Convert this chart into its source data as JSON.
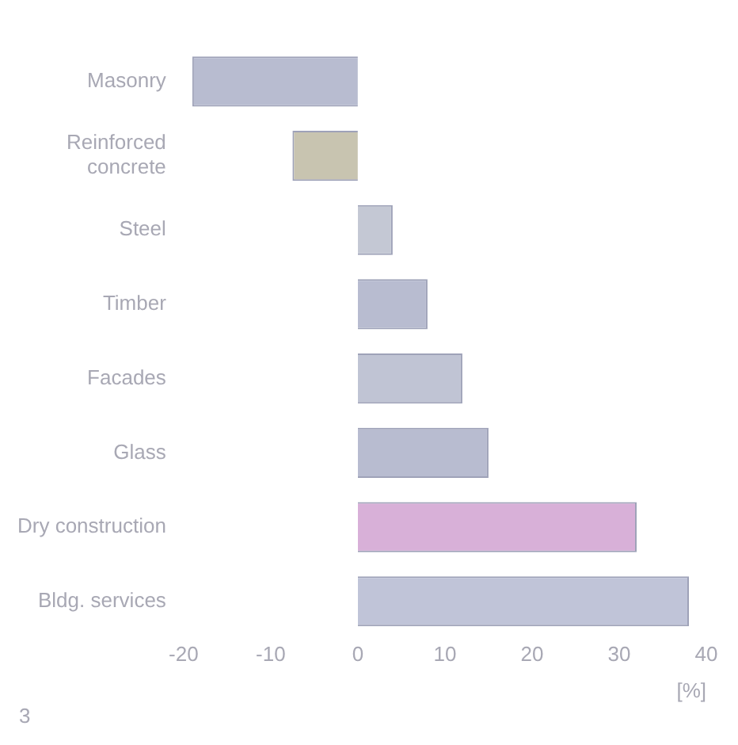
{
  "chart_data": {
    "type": "bar",
    "orientation": "horizontal",
    "xlabel": "[%]",
    "categories": [
      "Masonry",
      "Reinforced\nconcrete",
      "Steel",
      "Timber",
      "Facades",
      "Glass",
      "Dry construction",
      "Bldg. services"
    ],
    "values": [
      -19,
      -7.5,
      4,
      8,
      12,
      15,
      32,
      38
    ],
    "colors": [
      "#b8bcd0",
      "#c8c4b0",
      "#c4c8d4",
      "#b8bcd0",
      "#c0c4d4",
      "#b8bcd0",
      "#d8b0d8",
      "#c0c4d8"
    ],
    "xlim": [
      -20,
      40
    ],
    "xticks": [
      -20,
      -10,
      0,
      10,
      20,
      30,
      40
    ],
    "annotations": [
      "3"
    ]
  }
}
